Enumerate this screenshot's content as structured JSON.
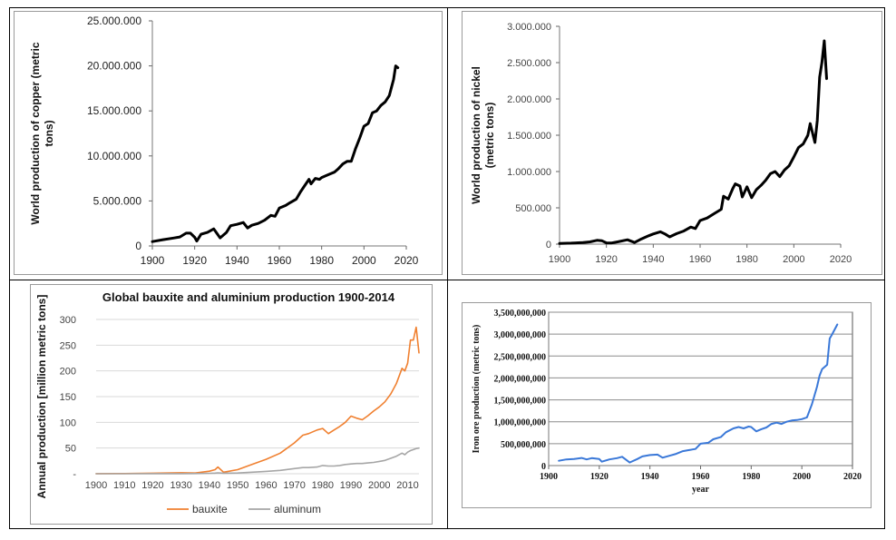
{
  "chart_data": [
    {
      "type": "line",
      "title": "",
      "xlabel": "",
      "ylabel": "World  production of copper (metric tons)",
      "xlim": [
        1900,
        2020
      ],
      "ylim": [
        0,
        25000000
      ],
      "xticks": [
        "1900",
        "1920",
        "1940",
        "1960",
        "1980",
        "2000",
        "2020"
      ],
      "yticks": [
        "0",
        "5.000.000",
        "10.000.000",
        "15.000.000",
        "20.000.000",
        "25.000.000"
      ],
      "color": "#000000",
      "x": [
        1900,
        1905,
        1910,
        1913,
        1916,
        1918,
        1920,
        1921,
        1923,
        1926,
        1929,
        1932,
        1935,
        1937,
        1940,
        1943,
        1945,
        1947,
        1950,
        1953,
        1956,
        1958,
        1960,
        1963,
        1965,
        1968,
        1970,
        1972,
        1974,
        1975,
        1977,
        1979,
        1980,
        1982,
        1984,
        1986,
        1988,
        1990,
        1992,
        1994,
        1996,
        1998,
        2000,
        2002,
        2004,
        2006,
        2008,
        2010,
        2012,
        2014,
        2015,
        2016
      ],
      "series": [
        {
          "name": "",
          "values": [
            480000,
            700000,
            880000,
            1000000,
            1420000,
            1420000,
            960000,
            540000,
            1300000,
            1500000,
            1900000,
            900000,
            1500000,
            2250000,
            2400000,
            2600000,
            2000000,
            2300000,
            2500000,
            2850000,
            3400000,
            3300000,
            4200000,
            4500000,
            4800000,
            5200000,
            6000000,
            6700000,
            7400000,
            6900000,
            7500000,
            7400000,
            7600000,
            7800000,
            8000000,
            8200000,
            8600000,
            9100000,
            9400000,
            9400000,
            10800000,
            12000000,
            13300000,
            13600000,
            14800000,
            15000000,
            15600000,
            16000000,
            16700000,
            18500000,
            20000000,
            19800000
          ]
        }
      ]
    },
    {
      "type": "line",
      "title": "",
      "xlabel": "",
      "ylabel": "World production of nickel (metric tons)",
      "xlim": [
        1900,
        2020
      ],
      "ylim": [
        0,
        3000000
      ],
      "xticks": [
        "1900",
        "1920",
        "1940",
        "1960",
        "1980",
        "2000",
        "2020"
      ],
      "yticks": [
        "0",
        "500.000",
        "1.000.000",
        "1.500.000",
        "2.000.000",
        "2.500.000",
        "3.000.000"
      ],
      "color": "#000000",
      "x": [
        1900,
        1905,
        1910,
        1913,
        1916,
        1918,
        1920,
        1922,
        1925,
        1929,
        1932,
        1935,
        1938,
        1940,
        1943,
        1945,
        1947,
        1950,
        1953,
        1956,
        1958,
        1960,
        1963,
        1966,
        1969,
        1970,
        1972,
        1974,
        1975,
        1977,
        1978,
        1980,
        1982,
        1984,
        1986,
        1988,
        1990,
        1992,
        1994,
        1996,
        1998,
        2000,
        2002,
        2004,
        2006,
        2007,
        2009,
        2010,
        2011,
        2012,
        2013,
        2014
      ],
      "series": [
        {
          "name": "",
          "values": [
            9000,
            14000,
            23000,
            31000,
            52000,
            48000,
            18000,
            15000,
            33000,
            60000,
            22000,
            73000,
            115000,
            140000,
            170000,
            140000,
            100000,
            145000,
            180000,
            235000,
            215000,
            325000,
            360000,
            420000,
            480000,
            660000,
            620000,
            770000,
            830000,
            800000,
            650000,
            790000,
            640000,
            750000,
            810000,
            880000,
            970000,
            1000000,
            930000,
            1020000,
            1080000,
            1200000,
            1330000,
            1380000,
            1500000,
            1660000,
            1400000,
            1700000,
            2300000,
            2500000,
            2800000,
            2280000
          ]
        }
      ]
    },
    {
      "type": "line",
      "title": "Global bauxite and aluminium production 1900-2014",
      "xlabel": "",
      "ylabel": "Annual production [million metric tons]",
      "xlim": [
        1900,
        2014
      ],
      "ylim": [
        0,
        300
      ],
      "xticks": [
        "1900",
        "1910",
        "1920",
        "1930",
        "1940",
        "1950",
        "1960",
        "1970",
        "1980",
        "1990",
        "2000",
        "2010"
      ],
      "yticks": [
        "-",
        "50",
        "100",
        "150",
        "200",
        "250",
        "300"
      ],
      "legend": "bottom",
      "x": [
        1900,
        1910,
        1920,
        1930,
        1935,
        1940,
        1942,
        1943,
        1945,
        1950,
        1955,
        1960,
        1965,
        1970,
        1973,
        1975,
        1978,
        1980,
        1982,
        1984,
        1986,
        1988,
        1990,
        1992,
        1994,
        1996,
        1998,
        2000,
        2002,
        2004,
        2006,
        2008,
        2009,
        2010,
        2011,
        2012,
        2013,
        2014
      ],
      "series": [
        {
          "name": "bauxite",
          "color": "#f08030",
          "values": [
            0.1,
            0.4,
            1,
            2,
            1.5,
            5,
            8,
            13,
            3,
            8,
            18,
            28,
            40,
            60,
            75,
            78,
            85,
            88,
            78,
            85,
            92,
            100,
            112,
            108,
            105,
            113,
            122,
            130,
            140,
            155,
            175,
            205,
            200,
            215,
            260,
            260,
            285,
            235
          ]
        },
        {
          "name": "aluminum",
          "color": "#a6a6a6",
          "values": [
            0,
            0,
            0.1,
            0.2,
            0.3,
            0.8,
            1.2,
            1.8,
            1,
            1.5,
            3,
            4.5,
            6.5,
            10,
            12,
            12,
            13,
            16,
            15,
            15,
            16,
            18,
            19,
            20,
            20,
            21,
            22,
            24,
            26,
            30,
            34,
            40,
            37,
            42,
            45,
            47,
            49,
            50
          ]
        }
      ]
    },
    {
      "type": "line",
      "title": "",
      "xlabel": "year",
      "ylabel": "Iron ore production (metric tons)",
      "xlim": [
        1900,
        2020
      ],
      "ylim": [
        0,
        3500000000
      ],
      "xticks": [
        "1900",
        "1920",
        "1940",
        "1960",
        "1980",
        "2000",
        "2020"
      ],
      "yticks": [
        "0",
        "500,000,000",
        "1,000,000,000",
        "1,500,000,000",
        "2,000,000,000",
        "2,500,000,000",
        "3,000,000,000",
        "3,500,000,000"
      ],
      "color": "#3a78d8",
      "x": [
        1904,
        1907,
        1910,
        1913,
        1915,
        1917,
        1920,
        1921,
        1924,
        1927,
        1929,
        1932,
        1935,
        1937,
        1940,
        1943,
        1945,
        1948,
        1950,
        1953,
        1955,
        1958,
        1960,
        1963,
        1965,
        1968,
        1970,
        1973,
        1975,
        1977,
        1979,
        1980,
        1982,
        1984,
        1986,
        1988,
        1990,
        1992,
        1994,
        1996,
        1998,
        2000,
        2002,
        2004,
        2006,
        2007,
        2008,
        2010,
        2011,
        2012,
        2014
      ],
      "series": [
        {
          "name": "",
          "values": [
            110000000,
            140000000,
            150000000,
            175000000,
            140000000,
            170000000,
            150000000,
            90000000,
            140000000,
            170000000,
            200000000,
            70000000,
            150000000,
            210000000,
            240000000,
            250000000,
            180000000,
            230000000,
            260000000,
            330000000,
            350000000,
            380000000,
            500000000,
            520000000,
            600000000,
            650000000,
            760000000,
            850000000,
            880000000,
            850000000,
            890000000,
            880000000,
            780000000,
            830000000,
            870000000,
            950000000,
            980000000,
            950000000,
            1000000000,
            1030000000,
            1040000000,
            1060000000,
            1100000000,
            1400000000,
            1800000000,
            2050000000,
            2200000000,
            2300000000,
            2900000000,
            3000000000,
            3220000000
          ]
        }
      ]
    }
  ]
}
